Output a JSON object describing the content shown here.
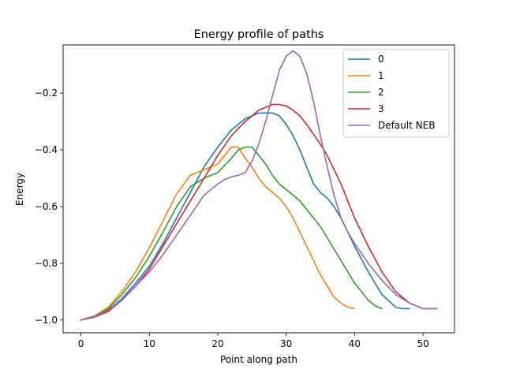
{
  "chart_data": {
    "type": "line",
    "title": "Energy profile of paths",
    "xlabel": "Point along path",
    "ylabel": "Energy",
    "xlim": [
      -2.6,
      54.6
    ],
    "ylim": [
      -1.045,
      -0.03
    ],
    "xticks": [
      0,
      10,
      20,
      30,
      40,
      50
    ],
    "xtick_labels": [
      "0",
      "10",
      "20",
      "30",
      "40",
      "50"
    ],
    "yticks": [
      -1.0,
      -0.8,
      -0.6,
      -0.4,
      -0.2
    ],
    "ytick_labels": [
      "−1.0",
      "−0.8",
      "−0.6",
      "−0.4",
      "−0.2"
    ],
    "grid": false,
    "legend_position": "top-right",
    "series": [
      {
        "name": "0",
        "color": "#1f77b4",
        "x": [
          0,
          2,
          4,
          6,
          8,
          10,
          12,
          14,
          16,
          18,
          20,
          22,
          24,
          26,
          28,
          29,
          30,
          31,
          32,
          33,
          34,
          35,
          36,
          37,
          38,
          39,
          40,
          42,
          44,
          46,
          47,
          48
        ],
        "y": [
          -1.0,
          -0.99,
          -0.965,
          -0.925,
          -0.87,
          -0.81,
          -0.73,
          -0.64,
          -0.55,
          -0.46,
          -0.39,
          -0.33,
          -0.29,
          -0.27,
          -0.27,
          -0.28,
          -0.31,
          -0.35,
          -0.4,
          -0.46,
          -0.52,
          -0.55,
          -0.57,
          -0.6,
          -0.64,
          -0.69,
          -0.74,
          -0.83,
          -0.91,
          -0.955,
          -0.96,
          -0.96
        ]
      },
      {
        "name": "1",
        "color": "#ff7f0e",
        "x": [
          0,
          2,
          4,
          6,
          8,
          10,
          12,
          14,
          16,
          18,
          20,
          21,
          22,
          23,
          24,
          25,
          26,
          27,
          28,
          29,
          30,
          31,
          32,
          33,
          34,
          35,
          36,
          37,
          38,
          39,
          40
        ],
        "y": [
          -1.0,
          -0.985,
          -0.955,
          -0.9,
          -0.83,
          -0.745,
          -0.65,
          -0.555,
          -0.49,
          -0.47,
          -0.45,
          -0.42,
          -0.39,
          -0.39,
          -0.43,
          -0.46,
          -0.5,
          -0.53,
          -0.55,
          -0.57,
          -0.6,
          -0.64,
          -0.69,
          -0.74,
          -0.79,
          -0.84,
          -0.88,
          -0.92,
          -0.94,
          -0.955,
          -0.96
        ]
      },
      {
        "name": "2",
        "color": "#2ca02c",
        "x": [
          0,
          2,
          4,
          6,
          8,
          10,
          12,
          14,
          16,
          18,
          20,
          22,
          23,
          24,
          25,
          26,
          27,
          28,
          29,
          30,
          31,
          32,
          33,
          34,
          35,
          36,
          37,
          38,
          39,
          40,
          41,
          42,
          43,
          44
        ],
        "y": [
          -1.0,
          -0.988,
          -0.96,
          -0.91,
          -0.85,
          -0.775,
          -0.69,
          -0.6,
          -0.53,
          -0.5,
          -0.48,
          -0.43,
          -0.4,
          -0.39,
          -0.39,
          -0.42,
          -0.45,
          -0.49,
          -0.52,
          -0.54,
          -0.56,
          -0.58,
          -0.61,
          -0.64,
          -0.67,
          -0.71,
          -0.75,
          -0.79,
          -0.83,
          -0.87,
          -0.9,
          -0.93,
          -0.95,
          -0.96
        ]
      },
      {
        "name": "3",
        "color": "#d62728",
        "x": [
          0,
          2,
          4,
          6,
          8,
          10,
          12,
          14,
          16,
          18,
          20,
          22,
          24,
          26,
          28,
          29,
          30,
          31,
          32,
          33,
          34,
          35,
          36,
          37,
          38,
          39,
          40,
          42,
          44,
          46,
          48,
          50,
          52
        ],
        "y": [
          -1.0,
          -0.99,
          -0.97,
          -0.93,
          -0.88,
          -0.82,
          -0.74,
          -0.66,
          -0.58,
          -0.5,
          -0.42,
          -0.35,
          -0.3,
          -0.26,
          -0.24,
          -0.24,
          -0.245,
          -0.26,
          -0.28,
          -0.31,
          -0.345,
          -0.38,
          -0.42,
          -0.47,
          -0.52,
          -0.58,
          -0.64,
          -0.74,
          -0.83,
          -0.9,
          -0.94,
          -0.96,
          -0.96
        ]
      },
      {
        "name": "Default NEB",
        "color": "#9467bd",
        "x": [
          0,
          2,
          4,
          6,
          8,
          10,
          12,
          14,
          16,
          18,
          20,
          21,
          22,
          23,
          24,
          25,
          26,
          27,
          28,
          29,
          30,
          31,
          32,
          33,
          34,
          35,
          36,
          37,
          38,
          39,
          40,
          42,
          44,
          46,
          48,
          50,
          52
        ],
        "y": [
          -1.0,
          -0.99,
          -0.965,
          -0.93,
          -0.88,
          -0.83,
          -0.77,
          -0.7,
          -0.63,
          -0.56,
          -0.52,
          -0.505,
          -0.495,
          -0.49,
          -0.48,
          -0.44,
          -0.38,
          -0.3,
          -0.21,
          -0.12,
          -0.07,
          -0.05,
          -0.07,
          -0.13,
          -0.23,
          -0.35,
          -0.46,
          -0.56,
          -0.64,
          -0.69,
          -0.73,
          -0.8,
          -0.86,
          -0.91,
          -0.94,
          -0.96,
          -0.96
        ]
      }
    ]
  }
}
